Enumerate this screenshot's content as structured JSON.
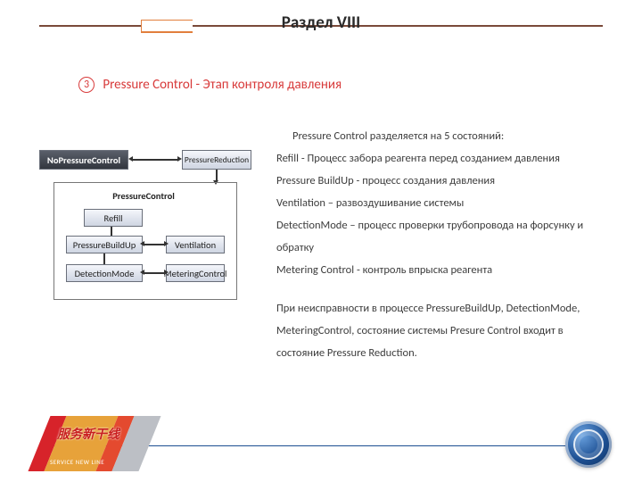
{
  "title": "Раздел VIII",
  "heading": {
    "num": "3",
    "text": "Pressure Control - Этап контроля давления"
  },
  "colors": {
    "heading": "#d83b3b",
    "topRule": "#7a4a3a",
    "accent": "#e27f3d",
    "bodyText": "#3d3d3d",
    "footRule": "#1d4f92"
  },
  "body": {
    "intro": "Pressure Control разделяется на 5 состояний:",
    "items": [
      "Refill - Процесс забора реагента перед созданием давления",
      "Pressure BuildUp - процесс создания давления",
      "Ventilation – развоздушивание системы",
      "DetectionMode – процесс проверки трубопровода на форсунку и обратку",
      "Metering Control - контроль впрыска реагента"
    ],
    "note": "При неисправности в процессе PressureBuildUp, DetectionMode, MeteringControl,  состояние системы Presure Control входит в состояние Pressure Reduction."
  },
  "diagram": {
    "type": "flowchart",
    "background_color": "#ffffff",
    "box_gradient": [
      "#f4f6fb",
      "#cfd5e2"
    ],
    "box_border": "#6a6f7a",
    "active_gradient": [
      "#5a5f6a",
      "#32363e"
    ],
    "font_size": 10.5,
    "nodes": {
      "noPressure": "NoPressureControl",
      "pressureReduction": "PressureReduction",
      "frameTitle": "PressureControl",
      "refill": "Refill",
      "buildUp": "PressureBuildUp",
      "ventilation": "Ventilation",
      "detection": "DetectionMode",
      "metering": "MeteringControl"
    },
    "edges": [
      [
        "noPressure",
        "pressureReduction",
        "bidir"
      ],
      [
        "refill",
        "buildUp",
        "down"
      ],
      [
        "buildUp",
        "ventilation",
        "bidir"
      ],
      [
        "buildUp",
        "detection",
        "down"
      ],
      [
        "detection",
        "metering",
        "bidir"
      ],
      [
        "pressureReduction",
        "frame",
        "down"
      ]
    ]
  },
  "footer": {
    "leftLogoMain": "服务新干线",
    "leftLogoSub": "SERVICE NEW LINE",
    "leftLogoColors": [
      "#d7232a",
      "#e7a23a",
      "#e44a2f",
      "#bcbfc5"
    ],
    "rightOrbColors": [
      "#6aa2e0",
      "#1d4f92",
      "#0a2a55"
    ]
  }
}
